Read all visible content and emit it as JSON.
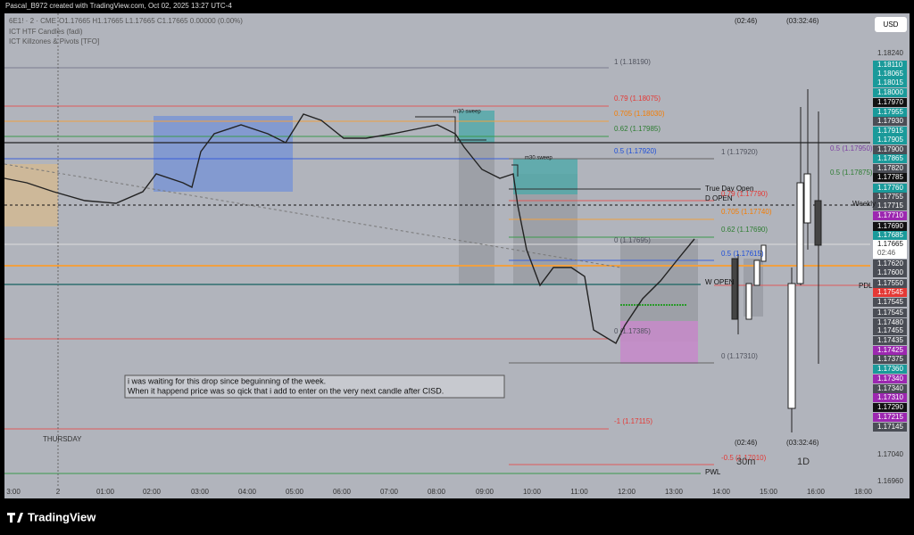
{
  "header": {
    "title": "Pascal_B972 created with TradingView.com, Oct 02, 2025 13:27 UTC-4"
  },
  "legend": {
    "symbol": "6E1! · 2 · CME",
    "ohlc": "O1.17665 H1.17665 L1.17665 C1.17665 0.00000 (0.00%)",
    "indicators": [
      "ICT HTF Candles (fadi)",
      "ICT Killzones & Pivots [TFO]"
    ]
  },
  "currency": "USD",
  "price_axis": [
    {
      "label": "1.18240",
      "color": "none"
    },
    {
      "label": "1.18110",
      "color": "#1a9a9a"
    },
    {
      "label": "1.18065",
      "color": "#1a9a9a"
    },
    {
      "label": "1.18015",
      "color": "#1a9a9a"
    },
    {
      "label": "1.18000",
      "color": "#1a9a9a"
    },
    {
      "label": "1.17970",
      "color": "#111111"
    },
    {
      "label": "1.17955",
      "color": "#1a9a9a"
    },
    {
      "label": "1.17930",
      "color": "#4a4d55"
    },
    {
      "label": "1.17915",
      "color": "#1a9a9a"
    },
    {
      "label": "1.17905",
      "color": "#1a9a9a"
    },
    {
      "label": "1.17900",
      "color": "#4a4d55"
    },
    {
      "label": "1.17865",
      "color": "#1a9a9a"
    },
    {
      "label": "1.17820",
      "color": "#4a4d55"
    },
    {
      "label": "1.17785",
      "color": "#111111"
    },
    {
      "label": "1.17760",
      "color": "#1a9a9a"
    },
    {
      "label": "1.17755",
      "color": "#4a4d55"
    },
    {
      "label": "1.17715",
      "color": "#4a4d55"
    },
    {
      "label": "1.17710",
      "color": "#9c27b0"
    },
    {
      "label": "1.17690",
      "color": "#111111"
    },
    {
      "label": "1.17685",
      "color": "#1a9a9a"
    },
    {
      "label": "1.17620",
      "color": "#4a4d55"
    },
    {
      "label": "1.17600",
      "color": "#4a4d55"
    },
    {
      "label": "1.17550",
      "color": "#4a4d55"
    },
    {
      "label": "1.17545",
      "color": "#e53935"
    },
    {
      "label": "1.17545",
      "color": "#4a4d55"
    },
    {
      "label": "1.17545",
      "color": "#4a4d55"
    },
    {
      "label": "1.17480",
      "color": "#4a4d55"
    },
    {
      "label": "1.17455",
      "color": "#4a4d55"
    },
    {
      "label": "1.17435",
      "color": "#4a4d55"
    },
    {
      "label": "1.17425",
      "color": "#9c27b0"
    },
    {
      "label": "1.17375",
      "color": "#4a4d55"
    },
    {
      "label": "1.17360",
      "color": "#1a9a9a"
    },
    {
      "label": "1.17340",
      "color": "#9c27b0"
    },
    {
      "label": "1.17340",
      "color": "#4a4d55"
    },
    {
      "label": "1.17310",
      "color": "#9c27b0"
    },
    {
      "label": "1.17290",
      "color": "#111111"
    },
    {
      "label": "1.17215",
      "color": "#9c27b0"
    },
    {
      "label": "1.17145",
      "color": "#4a4d55"
    },
    {
      "label": "1.17040",
      "color": "none"
    },
    {
      "label": "1.16960",
      "color": "none"
    }
  ],
  "last_price": {
    "price": "1.17665",
    "countdown": "02:46"
  },
  "time_axis": [
    "3:00",
    "2",
    "01:00",
    "02:00",
    "03:00",
    "04:00",
    "05:00",
    "06:00",
    "07:00",
    "08:00",
    "09:00",
    "10:00",
    "11:00",
    "12:00",
    "13:00",
    "14:00",
    "15:00",
    "16:00",
    "18:00"
  ],
  "chart_labels": [
    {
      "text": "1 (1.18190)",
      "color": "#50535e"
    },
    {
      "text": "0.79 (1.18075)",
      "color": "#e53935"
    },
    {
      "text": "0.705 (1.18030)",
      "color": "#f57c00"
    },
    {
      "text": "0.62 (1.17985)",
      "color": "#2e7d32"
    },
    {
      "text": "0.5 (1.17920)",
      "color": "#1e4fd8"
    },
    {
      "text": "1 (1.17920)",
      "color": "#50535e"
    },
    {
      "text": "0.5 (1.17950)",
      "color": "#7b3fa0"
    },
    {
      "text": "0.5 (1.17875)",
      "color": "#2e7d32"
    },
    {
      "text": "True Day Open",
      "color": "#111111"
    },
    {
      "text": "D OPEN",
      "color": "#111111"
    },
    {
      "text": "0.79 (1.17790)",
      "color": "#e53935"
    },
    {
      "text": "0.705 (1.17740)",
      "color": "#f57c00"
    },
    {
      "text": "0.62 (1.17690)",
      "color": "#2e7d32"
    },
    {
      "text": "0.5 (1.17615)",
      "color": "#1e4fd8"
    },
    {
      "text": "W OPEN",
      "color": "#111111"
    },
    {
      "text": "PDL",
      "color": "#111111"
    },
    {
      "text": "Weekly",
      "color": "#111111"
    },
    {
      "text": "0 (1.17310)",
      "color": "#50535e"
    },
    {
      "text": "-1 (1.17115)",
      "color": "#e53935"
    },
    {
      "text": "-0.5 (1.17010)",
      "color": "#e53935"
    },
    {
      "text": "PWL",
      "color": "#111111"
    },
    {
      "text": "THURSDAY",
      "color": "#333333"
    },
    {
      "text": "m30 sweep",
      "color": "#111111"
    },
    {
      "text": "m30 sweep",
      "color": "#111111"
    },
    {
      "text": "(02:46)",
      "color": "#222222"
    },
    {
      "text": "(03:32:46)",
      "color": "#222222"
    },
    {
      "text": "(02:46)",
      "color": "#222222"
    },
    {
      "text": "(03:32:46)",
      "color": "#222222"
    },
    {
      "text": "30m",
      "color": "#333333"
    },
    {
      "text": "1D",
      "color": "#333333"
    },
    {
      "text": "0 (1.17695)",
      "color": "#50535e"
    },
    {
      "text": "0 (1.17385)",
      "color": "#50535e"
    }
  ],
  "note": {
    "lines": [
      "i was waiting for this drop since beguinning of the week.",
      "When it happend price was so qick that i add to enter on the very next candle after CISD."
    ]
  },
  "footer": {
    "brand": "TradingView"
  }
}
